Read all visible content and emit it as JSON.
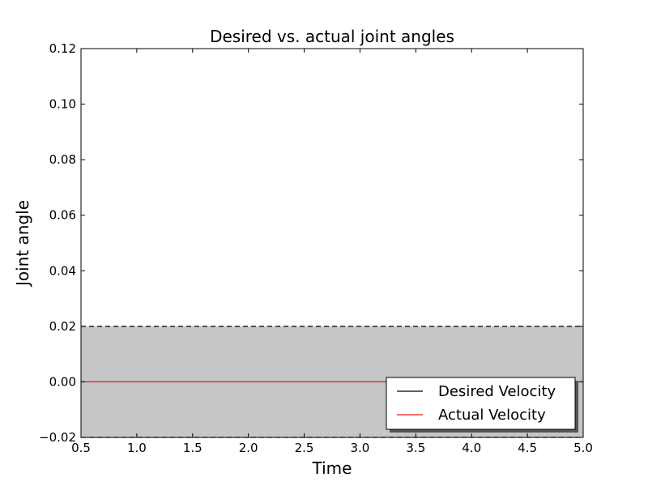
{
  "chart_data": {
    "type": "line",
    "title": "Desired vs. actual joint angles",
    "xlabel": "Time",
    "ylabel": "Joint angle",
    "xlim": [
      0.5,
      5.0
    ],
    "ylim": [
      -0.02,
      0.12
    ],
    "xticks": [
      "0.5",
      "1.0",
      "1.5",
      "2.0",
      "2.5",
      "3.0",
      "3.5",
      "4.0",
      "4.5",
      "5.0"
    ],
    "yticks": [
      "−0.02",
      "0.00",
      "0.02",
      "0.04",
      "0.06",
      "0.08",
      "0.10",
      "0.12"
    ],
    "grid": false,
    "legend_position": "lower-right",
    "tolerance_band": {
      "lower": -0.02,
      "upper": 0.02,
      "color": "#c6c6c6"
    },
    "series": [
      {
        "name": "Desired Velocity",
        "color": "#000000",
        "x": [
          0.5,
          5.0
        ],
        "y": [
          0.0,
          0.0
        ]
      },
      {
        "name": "Actual Velocity",
        "color": "#e41a1c",
        "x": [
          0.5,
          5.0
        ],
        "y": [
          0.0,
          0.0
        ]
      }
    ]
  }
}
